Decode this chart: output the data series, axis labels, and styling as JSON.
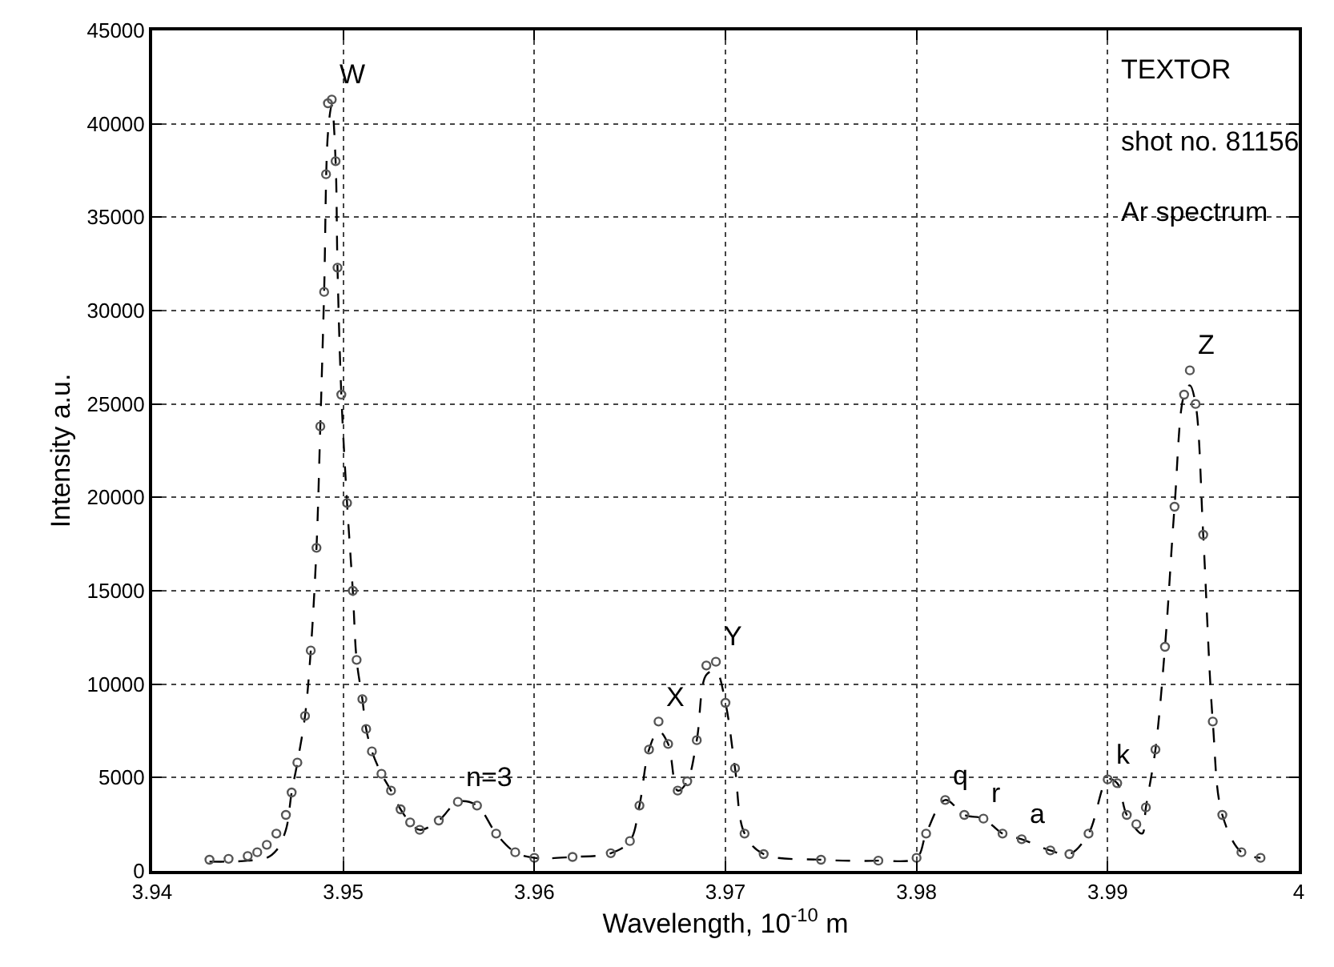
{
  "chart_data": {
    "type": "scatter",
    "xlabel": "Wavelength, 10$^{-10}$ m",
    "ylabel": "Intensity a.u.",
    "xlim": [
      3.94,
      4.0
    ],
    "xticks": [
      3.94,
      3.95,
      3.96,
      3.97,
      3.98,
      3.99,
      4
    ],
    "ylim": [
      0,
      45000
    ],
    "yticks": [
      0,
      5000,
      10000,
      15000,
      20000,
      25000,
      30000,
      35000,
      40000,
      45000
    ],
    "grid": true,
    "series": [
      {
        "type": "line",
        "line_style": "dashed",
        "marker": "none",
        "color": "#000000",
        "x": [
          3.943,
          3.944,
          3.945,
          3.946,
          3.9465,
          3.947,
          3.9473,
          3.9476,
          3.948,
          3.9483,
          3.9486,
          3.9488,
          3.949,
          3.9492,
          3.9494,
          3.9496,
          3.9497,
          3.9499,
          3.9502,
          3.9505,
          3.9507,
          3.951,
          3.9512,
          3.9515,
          3.952,
          3.9525,
          3.953,
          3.9535,
          3.954,
          3.955,
          3.956,
          3.957,
          3.958,
          3.959,
          3.96,
          3.962,
          3.964,
          3.965,
          3.9655,
          3.966,
          3.9665,
          3.967,
          3.9675,
          3.968,
          3.9685,
          3.969,
          3.9695,
          3.97,
          3.9705,
          3.971,
          3.972,
          3.975,
          3.978,
          3.98,
          3.9805,
          3.9815,
          3.9825,
          3.9835,
          3.9845,
          3.9855,
          3.987,
          3.988,
          3.989,
          3.99,
          3.9905,
          3.991,
          3.9918,
          3.992,
          3.9925,
          3.993,
          3.9935,
          3.994,
          3.9943,
          3.9946,
          3.995,
          3.9955,
          3.996,
          3.997,
          3.998
        ],
        "values": [
          500,
          500,
          550,
          700,
          1100,
          2200,
          4200,
          5800,
          8300,
          11800,
          17300,
          23800,
          31000,
          39500,
          41000,
          38000,
          32300,
          25500,
          19700,
          15000,
          11300,
          9200,
          7600,
          6400,
          5200,
          4300,
          3300,
          2600,
          2200,
          2700,
          3700,
          3500,
          2000,
          1000,
          700,
          750,
          950,
          1600,
          3500,
          6500,
          7500,
          6800,
          4300,
          4800,
          7000,
          10500,
          10700,
          9000,
          5500,
          2000,
          900,
          600,
          550,
          700,
          2000,
          3800,
          3000,
          2800,
          2000,
          1700,
          1100,
          900,
          2000,
          4900,
          4700,
          3000,
          2000,
          3400,
          6500,
          12000,
          19500,
          25500,
          26000,
          25000,
          18000,
          8000,
          3000,
          1000,
          700
        ]
      },
      {
        "marker": "circle",
        "color": "#555555",
        "x": [
          3.943,
          3.944,
          3.945,
          3.9455,
          3.946,
          3.9465,
          3.947,
          3.9473,
          3.9476,
          3.948,
          3.9483,
          3.9486,
          3.9488,
          3.949,
          3.9491,
          3.9492,
          3.9494,
          3.9496,
          3.9497,
          3.9499,
          3.9502,
          3.9505,
          3.9507,
          3.951,
          3.9512,
          3.9515,
          3.952,
          3.9525,
          3.953,
          3.9535,
          3.954,
          3.955,
          3.956,
          3.957,
          3.958,
          3.959,
          3.96,
          3.962,
          3.964,
          3.965,
          3.9655,
          3.966,
          3.9665,
          3.967,
          3.9675,
          3.968,
          3.9685,
          3.969,
          3.9695,
          3.97,
          3.9705,
          3.971,
          3.972,
          3.975,
          3.978,
          3.98,
          3.9805,
          3.9815,
          3.9825,
          3.9835,
          3.9845,
          3.9855,
          3.987,
          3.988,
          3.989,
          3.99,
          3.9905,
          3.991,
          3.9915,
          3.992,
          3.9925,
          3.993,
          3.9935,
          3.994,
          3.9943,
          3.9946,
          3.995,
          3.9955,
          3.996,
          3.997,
          3.998
        ],
        "values": [
          600,
          650,
          800,
          1000,
          1400,
          2000,
          3000,
          4200,
          5800,
          8300,
          11800,
          17300,
          23800,
          31000,
          37300,
          41100,
          41300,
          38000,
          32300,
          25500,
          19700,
          15000,
          11300,
          9200,
          7600,
          6400,
          5200,
          4300,
          3300,
          2600,
          2200,
          2700,
          3700,
          3500,
          2000,
          1000,
          700,
          750,
          950,
          1600,
          3500,
          6500,
          8000,
          6800,
          4300,
          4800,
          7000,
          11000,
          11200,
          9000,
          5500,
          2000,
          900,
          600,
          550,
          700,
          2000,
          3800,
          3000,
          2800,
          2000,
          1700,
          1100,
          900,
          2000,
          4900,
          4700,
          3000,
          2500,
          3400,
          6500,
          12000,
          19500,
          25500,
          26800,
          25000,
          18000,
          8000,
          3000,
          1000,
          700
        ]
      }
    ],
    "annotations": [
      {
        "text": "W",
        "x": 3.9494,
        "y": 41300
      },
      {
        "text": "n=3",
        "x": 3.956,
        "y": 3700
      },
      {
        "text": "X",
        "x": 3.9665,
        "y": 8000
      },
      {
        "text": "Y",
        "x": 3.9695,
        "y": 11200
      },
      {
        "text": "q",
        "x": 3.9815,
        "y": 3800
      },
      {
        "text": "r",
        "x": 3.9835,
        "y": 2800
      },
      {
        "text": "a",
        "x": 3.9855,
        "y": 1700
      },
      {
        "text": "k",
        "x": 3.99,
        "y": 4900
      },
      {
        "text": "Z",
        "x": 3.9943,
        "y": 26800
      },
      "TEXTOR",
      "shot no. 81156",
      "Ar spectrum"
    ]
  }
}
